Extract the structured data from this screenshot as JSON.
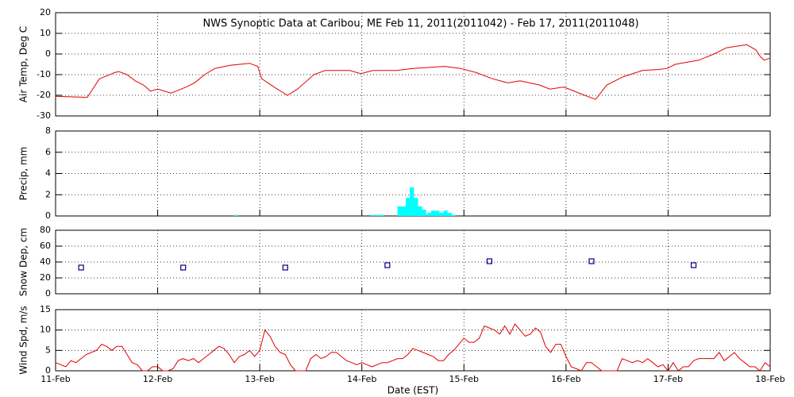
{
  "chart_data": [
    {
      "type": "line",
      "title": "NWS Synoptic Data at Caribou, ME   Feb 11, 2011(2011042) - Feb 17, 2011(2011048)",
      "y_label": "Air Temp, Deg C",
      "color": "#e00000",
      "x": [
        0,
        0.31,
        0.43,
        0.58,
        0.62,
        0.7,
        0.78,
        0.86,
        0.93,
        1.0,
        1.13,
        1.28,
        1.36,
        1.46,
        1.56,
        1.71,
        1.9,
        1.98,
        2.02,
        2.14,
        2.27,
        2.37,
        2.53,
        2.64,
        2.88,
        2.99,
        3.11,
        3.34,
        3.5,
        3.81,
        3.97,
        4.12,
        4.28,
        4.43,
        4.55,
        4.74,
        4.84,
        4.98,
        5.13,
        5.29,
        5.4,
        5.56,
        5.75,
        5.91,
        5.99,
        6.07,
        6.3,
        6.45,
        6.57,
        6.77,
        6.86,
        6.9,
        6.94,
        7.0
      ],
      "values": [
        -20.5,
        -21,
        -12,
        -9,
        -8.5,
        -10,
        -13,
        -15,
        -18,
        -17,
        -19,
        -16,
        -14,
        -10,
        -7,
        -5.5,
        -4.5,
        -6,
        -12,
        -16,
        -20,
        -17,
        -10,
        -8,
        -8,
        -9.5,
        -8,
        -8,
        -7,
        -6,
        -7,
        -9,
        -12,
        -14,
        -13,
        -15,
        -17,
        -16,
        -19,
        -22,
        -15,
        -11,
        -8,
        -7.5,
        -7,
        -5,
        -3,
        0,
        3,
        4.5,
        2,
        -1,
        -3,
        -2
      ],
      "ylim": [
        -30,
        20
      ],
      "yticks": [
        -30,
        -20,
        -10,
        0,
        10,
        20
      ]
    },
    {
      "type": "bar",
      "y_label": "Precip, mm",
      "color": "#00ffff",
      "x": [
        1.77,
        3.11,
        3.16,
        3.2,
        3.37,
        3.41,
        3.45,
        3.49,
        3.53,
        3.57,
        3.61,
        3.66,
        3.7,
        3.74,
        3.78,
        3.82,
        3.86,
        3.9
      ],
      "values": [
        0.1,
        0.1,
        0.1,
        0.1,
        0.9,
        0.9,
        1.7,
        2.7,
        1.7,
        0.9,
        0.6,
        0.3,
        0.5,
        0.5,
        0.3,
        0.5,
        0.3,
        0.1
      ],
      "ylim": [
        0,
        8
      ],
      "yticks": [
        0,
        2,
        4,
        6,
        8
      ]
    },
    {
      "type": "scatter",
      "y_label": "Snow Dep, cm",
      "color": "#000080",
      "x": [
        0.25,
        1.25,
        2.25,
        3.25,
        4.25,
        5.25,
        6.25
      ],
      "values": [
        33,
        33,
        33,
        36,
        41,
        41,
        36
      ],
      "ylim": [
        0,
        80
      ],
      "yticks": [
        0,
        20,
        40,
        60,
        80
      ]
    },
    {
      "type": "line",
      "y_label": "Wind Spd, m/s",
      "x_label": "Date (EST)",
      "color": "#e00000",
      "x": [
        0,
        0.05,
        0.1,
        0.15,
        0.2,
        0.25,
        0.3,
        0.35,
        0.4,
        0.45,
        0.5,
        0.55,
        0.6,
        0.65,
        0.7,
        0.75,
        0.8,
        0.85,
        0.9,
        0.95,
        1.0,
        1.05,
        1.1,
        1.15,
        1.2,
        1.25,
        1.3,
        1.35,
        1.4,
        1.45,
        1.5,
        1.55,
        1.6,
        1.65,
        1.7,
        1.75,
        1.8,
        1.85,
        1.9,
        1.95,
        2.0,
        2.05,
        2.1,
        2.15,
        2.2,
        2.25,
        2.3,
        2.35,
        2.4,
        2.45,
        2.5,
        2.55,
        2.6,
        2.65,
        2.7,
        2.75,
        2.8,
        2.85,
        2.9,
        2.95,
        3.0,
        3.05,
        3.1,
        3.15,
        3.2,
        3.25,
        3.3,
        3.35,
        3.4,
        3.45,
        3.5,
        3.55,
        3.6,
        3.65,
        3.7,
        3.75,
        3.8,
        3.85,
        3.9,
        3.95,
        4.0,
        4.05,
        4.1,
        4.15,
        4.2,
        4.25,
        4.3,
        4.35,
        4.4,
        4.45,
        4.5,
        4.55,
        4.6,
        4.65,
        4.7,
        4.75,
        4.8,
        4.85,
        4.9,
        4.95,
        5.0,
        5.05,
        5.1,
        5.15,
        5.2,
        5.25,
        5.3,
        5.35,
        5.4,
        5.45,
        5.5,
        5.55,
        5.6,
        5.65,
        5.7,
        5.75,
        5.8,
        5.85,
        5.9,
        5.95,
        6.0,
        6.05,
        6.1,
        6.15,
        6.2,
        6.25,
        6.3,
        6.35,
        6.4,
        6.45,
        6.5,
        6.55,
        6.6,
        6.65,
        6.7,
        6.75,
        6.8,
        6.85,
        6.9,
        6.95,
        7.0
      ],
      "values": [
        2,
        1.5,
        1,
        2.5,
        2,
        3,
        4,
        4.5,
        5,
        6.5,
        6,
        5,
        6,
        6,
        4,
        2,
        1.5,
        0,
        0,
        1,
        1,
        0,
        0,
        0.5,
        2.5,
        3,
        2.5,
        3,
        2,
        3,
        4,
        5,
        6,
        5.5,
        4,
        2,
        3.5,
        4,
        5,
        3.5,
        5,
        10,
        8.5,
        6,
        4.5,
        4,
        1.5,
        0,
        0,
        0,
        3,
        4,
        3,
        3.5,
        4.5,
        4.5,
        3.5,
        2.5,
        2,
        1.5,
        2,
        1.5,
        1,
        1.5,
        2,
        2,
        2.5,
        3,
        3,
        4,
        5.5,
        5,
        4.5,
        4,
        3.5,
        2.5,
        2.5,
        4,
        5,
        6.5,
        8,
        7,
        7,
        8,
        11,
        10.5,
        10,
        9,
        11,
        9,
        11.5,
        10,
        8.5,
        9,
        10.5,
        9.5,
        6,
        4.5,
        6.5,
        6.5,
        3.5,
        1,
        0.5,
        0,
        2,
        2,
        1,
        0,
        0,
        0,
        0,
        3,
        2.5,
        2,
        2.5,
        2,
        3,
        2,
        1,
        1.5,
        0,
        2,
        0,
        1,
        1,
        2.5,
        3,
        3,
        3,
        3,
        4.5,
        2.5,
        3.5,
        4.5,
        3,
        2,
        1,
        1,
        0,
        2,
        1
      ],
      "ylim": [
        0,
        15
      ],
      "yticks": [
        0,
        5,
        10,
        15
      ],
      "xlim": [
        0,
        7
      ],
      "xticks": [
        {
          "value": 0,
          "label": "11-Feb"
        },
        {
          "value": 1,
          "label": "12-Feb"
        },
        {
          "value": 2,
          "label": "13-Feb"
        },
        {
          "value": 3,
          "label": "14-Feb"
        },
        {
          "value": 4,
          "label": "15-Feb"
        },
        {
          "value": 5,
          "label": "16-Feb"
        },
        {
          "value": 6,
          "label": "17-Feb"
        },
        {
          "value": 7,
          "label": "18-Feb"
        }
      ]
    }
  ]
}
